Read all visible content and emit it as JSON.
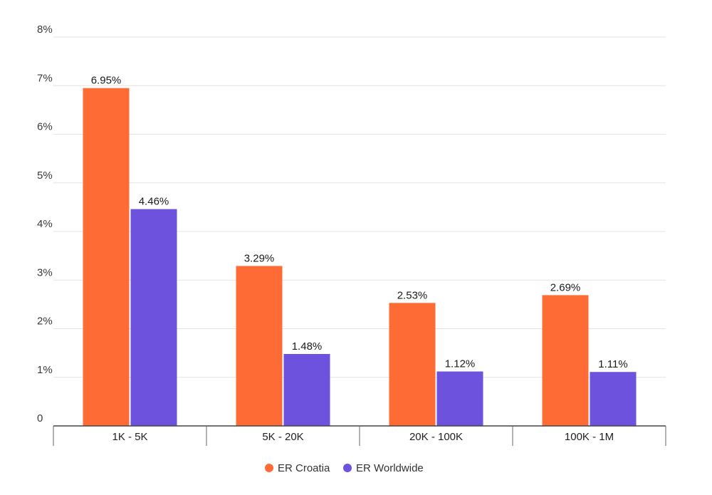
{
  "chart_data": {
    "type": "bar",
    "categories": [
      "1K - 5K",
      "5K - 20K",
      "20K - 100K",
      "100K - 1M"
    ],
    "series": [
      {
        "name": "ER Croatia",
        "color": "#ff6b35",
        "values": [
          6.95,
          3.29,
          2.53,
          2.69
        ],
        "labels": [
          "6.95%",
          "3.29%",
          "2.53%",
          "2.69%"
        ]
      },
      {
        "name": "ER Worldwide",
        "color": "#6c52dc",
        "values": [
          4.46,
          1.48,
          1.12,
          1.11
        ],
        "labels": [
          "4.46%",
          "1.48%",
          "1.12%",
          "1.11%"
        ]
      }
    ],
    "y_ticks": [
      {
        "value": 0,
        "label": "0"
      },
      {
        "value": 1,
        "label": "1%"
      },
      {
        "value": 2,
        "label": "2%"
      },
      {
        "value": 3,
        "label": "3%"
      },
      {
        "value": 4,
        "label": "4%"
      },
      {
        "value": 5,
        "label": "5%"
      },
      {
        "value": 6,
        "label": "6%"
      },
      {
        "value": 7,
        "label": "7%"
      },
      {
        "value": 8,
        "label": "8%"
      }
    ],
    "ylim": [
      0,
      8
    ],
    "title": "",
    "xlabel": "",
    "ylabel": "",
    "grid": true,
    "legend_position": "bottom-center"
  }
}
